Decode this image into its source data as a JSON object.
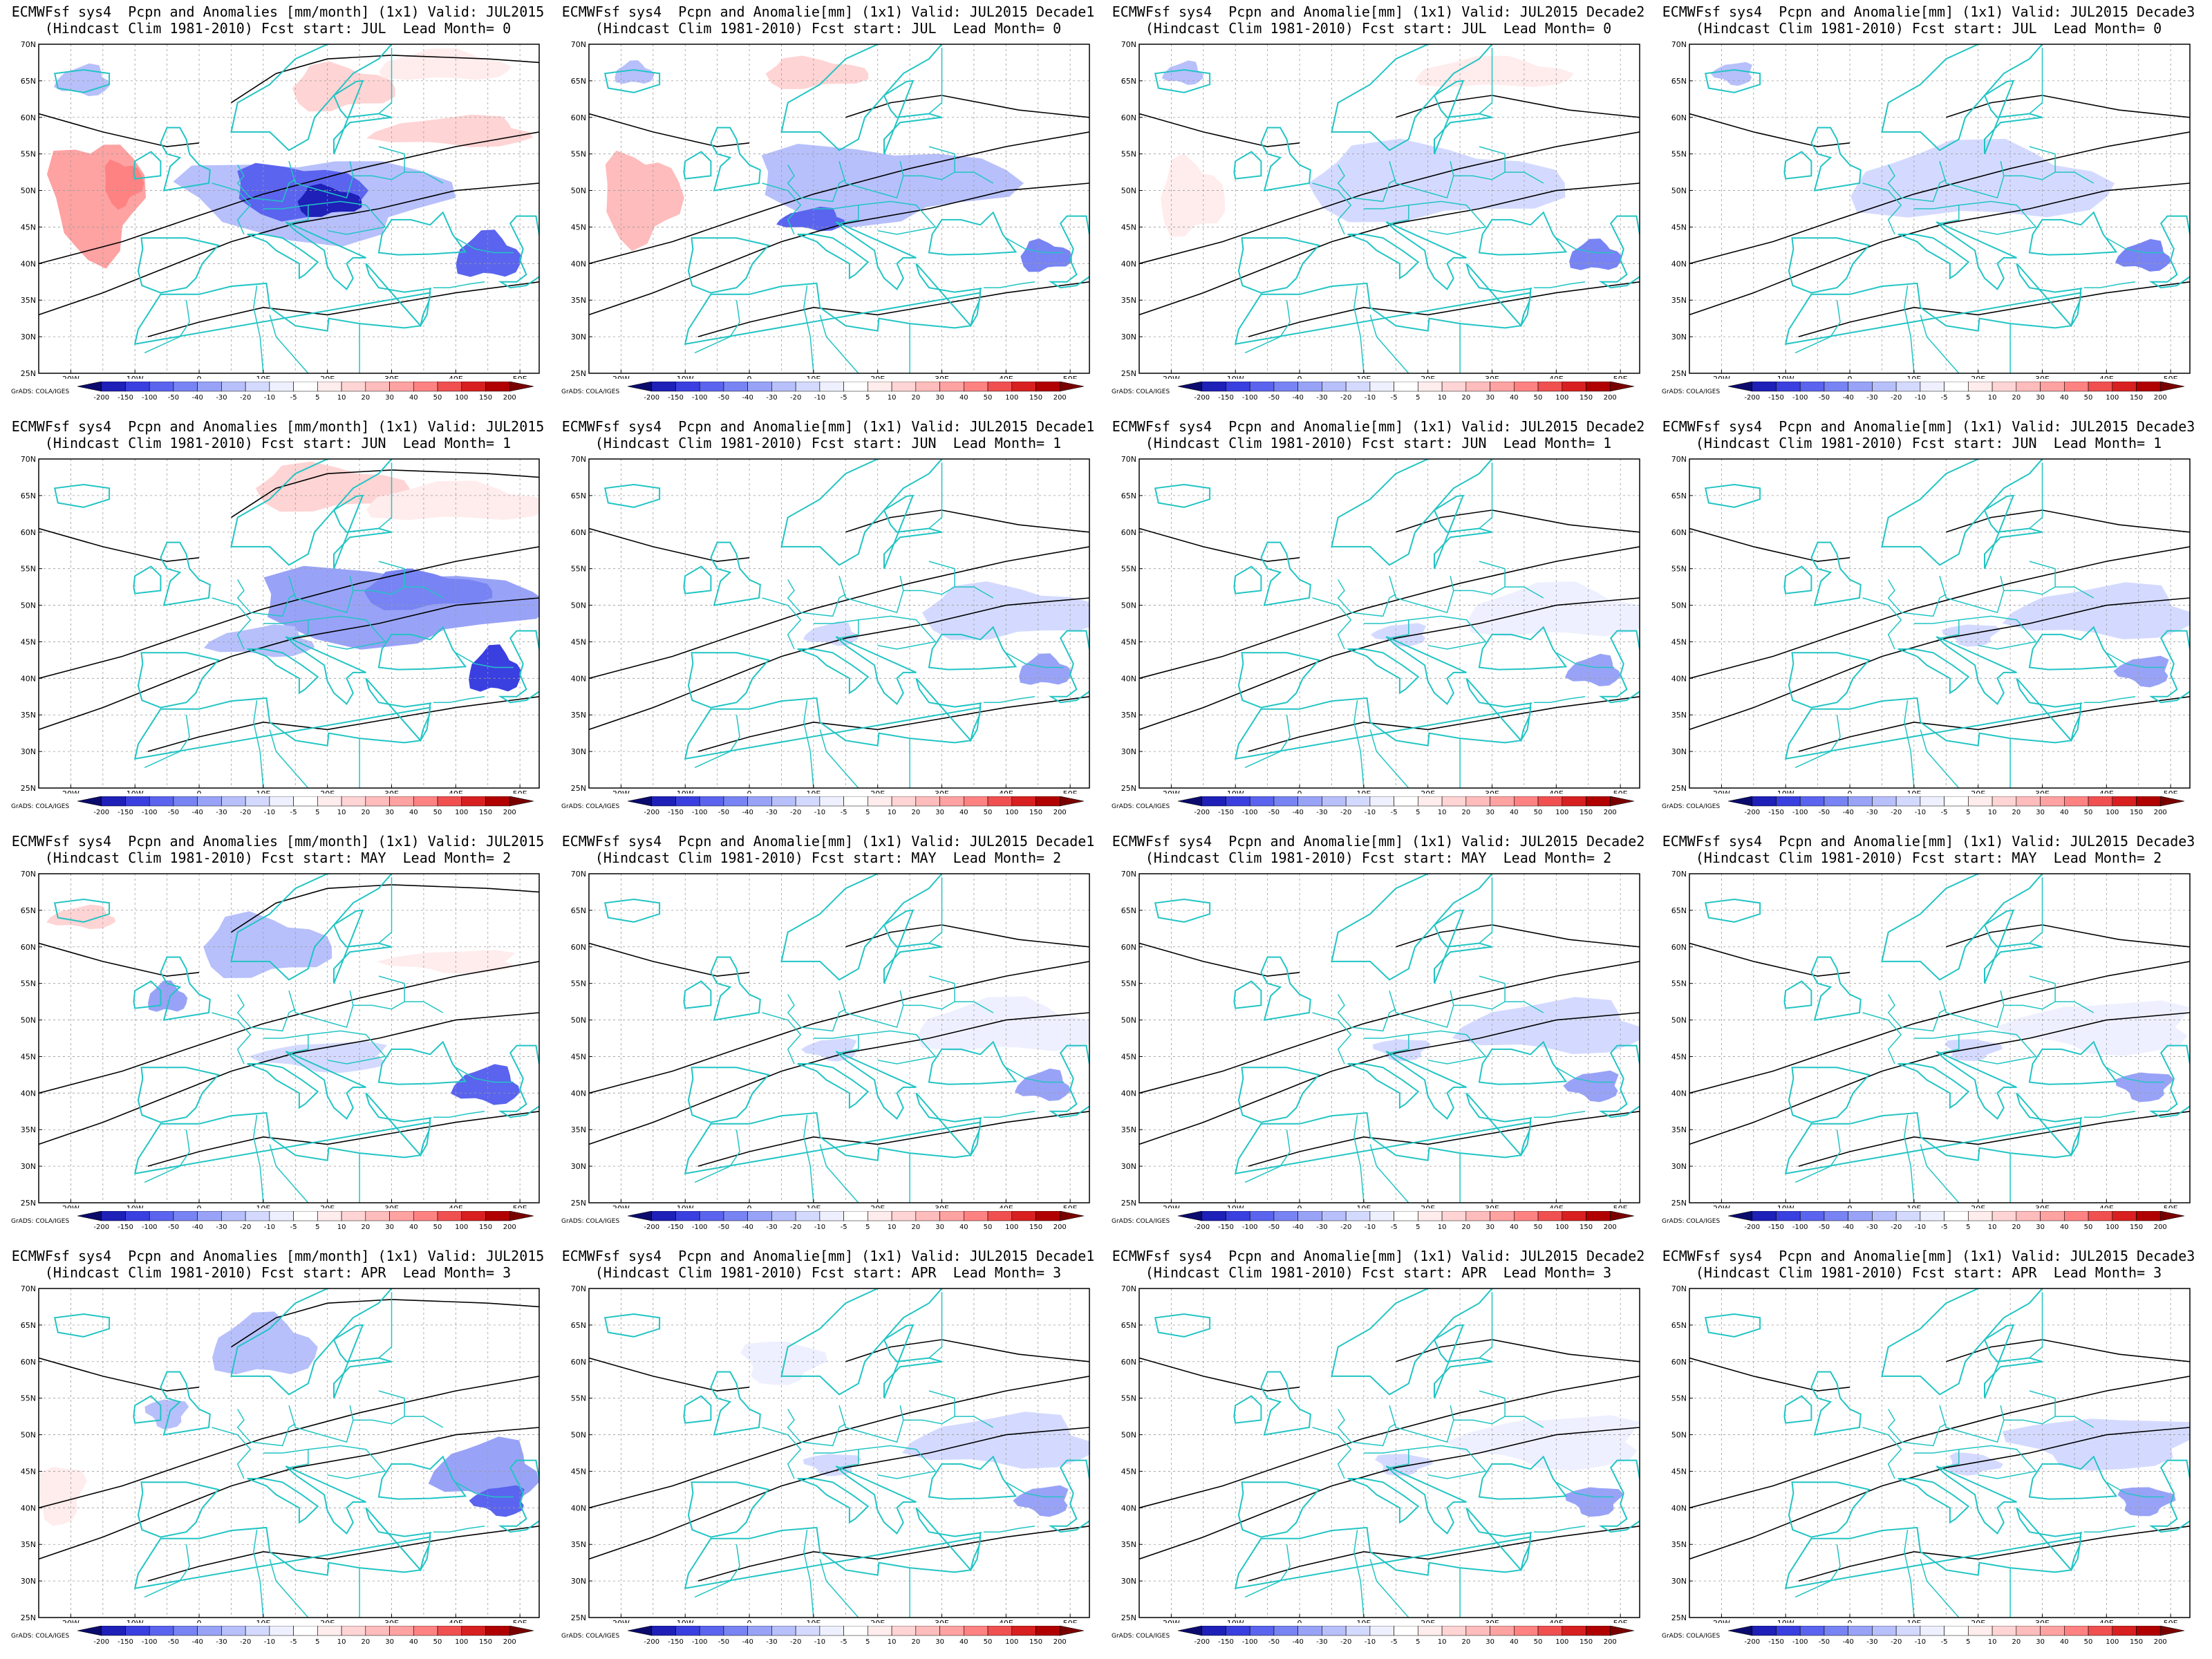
{
  "header": {
    "model": "ECMWFsf sys4",
    "clim": "(Hindcast Clim 1981-2010)"
  },
  "rows": [
    {
      "start": "JUL",
      "lead": "0"
    },
    {
      "start": "JUN",
      "lead": "1"
    },
    {
      "start": "MAY",
      "lead": "2"
    },
    {
      "start": "APR",
      "lead": "3"
    }
  ],
  "columns": [
    {
      "title": "Pcpn and Anomalies [mm/month] (1x1) Valid: JUL2015"
    },
    {
      "title": "Pcpn and Anomalie[mm] (1x1) Valid: JUL2015 Decade1"
    },
    {
      "title": "Pcpn and Anomalie[mm] (1x1) Valid: JUL2015 Decade2"
    },
    {
      "title": "Pcpn and Anomalie[mm] (1x1) Valid: JUL2015 Decade3"
    }
  ],
  "axes": {
    "lat_labels": [
      "70N",
      "65N",
      "60N",
      "55N",
      "50N",
      "45N",
      "40N",
      "35N",
      "30N",
      "25N"
    ],
    "lon_labels": [
      "20W",
      "10W",
      "0",
      "10E",
      "20E",
      "30E",
      "40E",
      "50E"
    ]
  },
  "colorbar": {
    "levels": [
      "-200",
      "-150",
      "-100",
      "-50",
      "-40",
      "-30",
      "-20",
      "-10",
      "-5",
      "5",
      "10",
      "20",
      "30",
      "40",
      "50",
      "100",
      "150",
      "200"
    ],
    "colors": [
      "#0b0b6e",
      "#1e20b8",
      "#3a3fe0",
      "#5a64ee",
      "#7884f3",
      "#98a3f7",
      "#b7c0fb",
      "#d4daff",
      "#eef0ff",
      "#ffffff",
      "#ffecec",
      "#ffd4d4",
      "#ffbcbc",
      "#ffa2a2",
      "#ff8282",
      "#f05050",
      "#d82020",
      "#b00000",
      "#7a0000"
    ]
  },
  "credit": "GrADS: COLA/IGES",
  "colors": {
    "coast": "#22c4c4",
    "contour": "#000000",
    "grid": "#9a9a9a"
  },
  "static": {
    "fcst_prefix": "Fcst start:",
    "lead_prefix": "Lead Month="
  }
}
